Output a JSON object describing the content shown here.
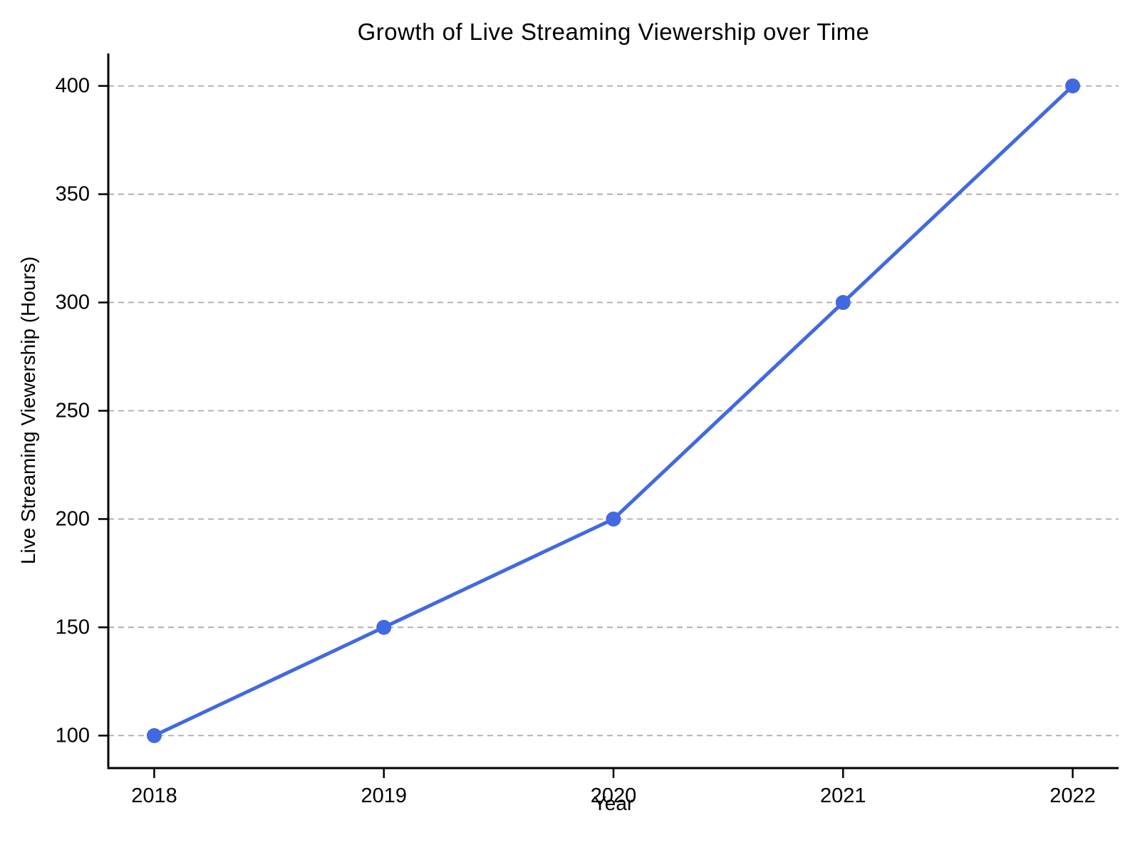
{
  "chart_data": {
    "type": "line",
    "title": "Growth of Live Streaming Viewership over Time",
    "xlabel": "Year",
    "ylabel": "Live Streaming Viewership (Hours)",
    "series": [
      {
        "name": "Live Streaming Viewership",
        "x": [
          2018,
          2019,
          2020,
          2021,
          2022
        ],
        "values": [
          100,
          150,
          200,
          300,
          400
        ]
      }
    ],
    "xticks": [
      2018,
      2019,
      2020,
      2021,
      2022
    ],
    "yticks": [
      100,
      150,
      200,
      250,
      300,
      350,
      400
    ],
    "xlim": [
      2017.8,
      2022.2
    ],
    "ylim": [
      85,
      415
    ],
    "grid": "horizontal-dashed",
    "legend": "none",
    "marker": "circle",
    "line_color": "#4169E1",
    "marker_color": "#4169E1",
    "grid_color": "#aaaaaa",
    "axis_color": "#000000",
    "background_color": "#ffffff"
  }
}
